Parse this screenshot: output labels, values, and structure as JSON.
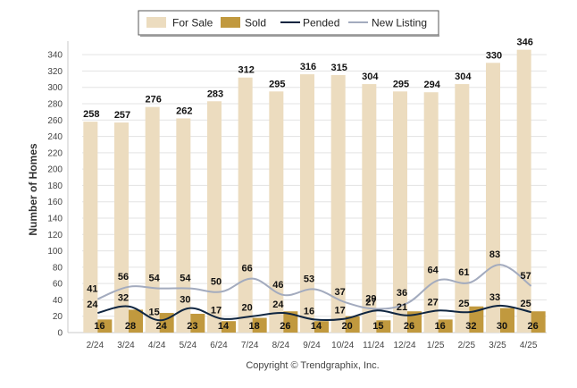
{
  "chart_data": {
    "type": "bar",
    "ylabel": "Number of Homes",
    "ylim": [
      0,
      350
    ],
    "yticks": [
      0,
      20,
      40,
      60,
      80,
      100,
      120,
      140,
      160,
      180,
      200,
      220,
      240,
      260,
      280,
      300,
      320,
      340
    ],
    "grid": true,
    "legend_position": "top-center",
    "categories": [
      "2/24",
      "3/24",
      "4/24",
      "5/24",
      "6/24",
      "7/24",
      "8/24",
      "9/24",
      "10/24",
      "11/24",
      "12/24",
      "1/25",
      "2/25",
      "3/25",
      "4/25"
    ],
    "series": [
      {
        "name": "For Sale",
        "kind": "bar",
        "color": "#ecdcbf",
        "values": [
          258,
          257,
          276,
          262,
          283,
          312,
          295,
          316,
          315,
          304,
          295,
          294,
          304,
          330,
          346
        ]
      },
      {
        "name": "Sold",
        "kind": "bar",
        "color": "#c1993e",
        "values": [
          16,
          28,
          24,
          23,
          14,
          18,
          26,
          14,
          20,
          15,
          26,
          16,
          32,
          30,
          26
        ]
      },
      {
        "name": "Pended",
        "kind": "line",
        "color": "#0f2540",
        "values": [
          24,
          32,
          15,
          30,
          17,
          20,
          24,
          16,
          17,
          27,
          21,
          27,
          25,
          33,
          25
        ]
      },
      {
        "name": "New Listing",
        "kind": "line",
        "color": "#a3abbe",
        "values": [
          41,
          56,
          54,
          54,
          50,
          66,
          46,
          53,
          37,
          29,
          36,
          64,
          61,
          83,
          57
        ]
      }
    ]
  },
  "footer": "Copyright © Trendgraphix, Inc."
}
